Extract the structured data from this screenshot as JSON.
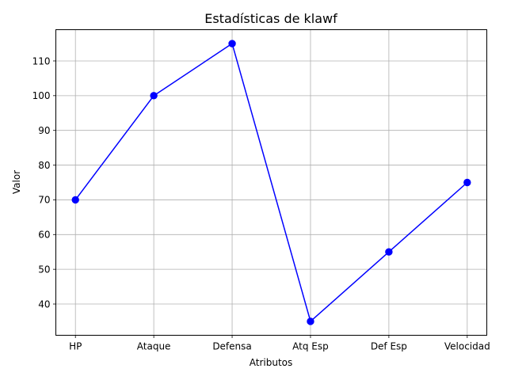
{
  "chart_data": {
    "type": "line",
    "title": "Estadísticas de klawf",
    "xlabel": "Atributos",
    "ylabel": "Valor",
    "categories": [
      "HP",
      "Ataque",
      "Defensa",
      "Atq Esp",
      "Def Esp",
      "Velocidad"
    ],
    "series": [
      {
        "values": [
          70,
          100,
          115,
          35,
          55,
          75
        ],
        "color": "#0000ff",
        "marker": "circle"
      }
    ],
    "ylim": [
      31,
      119
    ],
    "yticks": [
      40,
      50,
      60,
      70,
      80,
      90,
      100,
      110
    ],
    "grid": true,
    "legend": false
  },
  "colors": {
    "line": "#0000ff",
    "grid": "#b0b0b0",
    "axes": "#000000"
  }
}
